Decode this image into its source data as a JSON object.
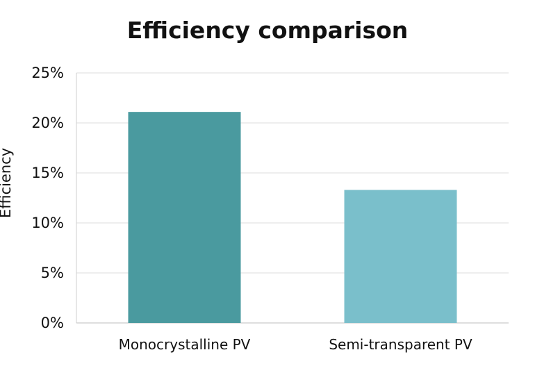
{
  "chart_data": {
    "type": "bar",
    "title": "Efficiency comparison",
    "xlabel": "",
    "ylabel": "Efficiency",
    "categories": [
      "Monocrystalline PV",
      "Semi-transparent PV"
    ],
    "values": [
      21.1,
      13.3
    ],
    "value_unit": "%",
    "ylim": [
      0,
      25
    ],
    "y_ticks": [
      0,
      5,
      10,
      15,
      20,
      25
    ],
    "y_tick_labels": [
      "0%",
      "5%",
      "10%",
      "15%",
      "20%",
      "25%"
    ],
    "grid": true,
    "legend": "none",
    "colors": [
      "#4a9a9f",
      "#7abfcb"
    ]
  }
}
